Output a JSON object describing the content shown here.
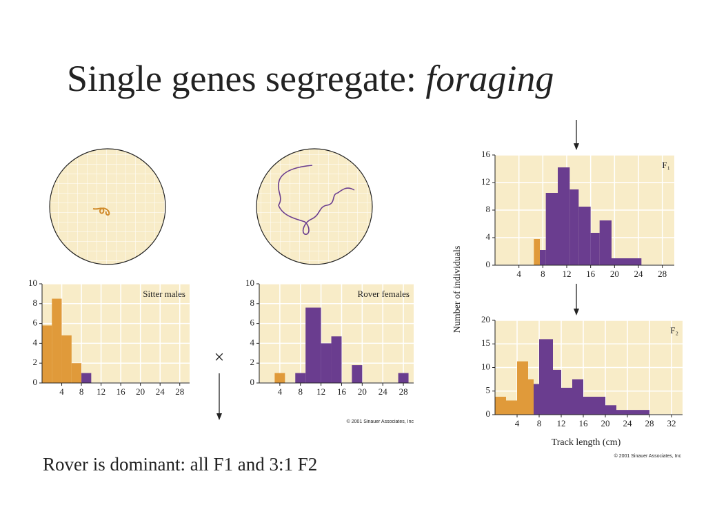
{
  "title": "Single genes segregate: ",
  "title_italic": "foraging",
  "caption": "Rover is dominant: all F1 and 3:1 F2",
  "cross_symbol": "×",
  "copyright": [
    "© 2001 Sinauer Associates, Inc",
    "© 2001 Sinauer Associates, Inc"
  ],
  "chart_data": [
    {
      "type": "histogram",
      "label": "Sitter males",
      "bins": [
        0,
        2,
        4,
        6,
        8,
        10
      ],
      "values": [
        5.8,
        8.5,
        4.8,
        2,
        1
      ],
      "bar_colors": [
        "#e09a3a",
        "#e09a3a",
        "#e09a3a",
        "#e09a3a",
        "#6a3d8f"
      ],
      "xlim": [
        0,
        30
      ],
      "ylim": [
        0,
        10
      ],
      "xticks": [
        4,
        8,
        12,
        16,
        20,
        24,
        28
      ],
      "yticks": [
        0,
        2,
        4,
        6,
        8,
        10
      ],
      "grid": true
    },
    {
      "type": "histogram",
      "label": "Rover females",
      "bins": [
        3,
        5,
        7,
        9,
        12,
        14,
        16,
        18,
        20,
        27,
        29
      ],
      "values": [
        1,
        0,
        1,
        7.6,
        4,
        4.7,
        0,
        1.8,
        0,
        1
      ],
      "bar_colors": [
        "#e09a3a",
        "#6a3d8f",
        "#6a3d8f",
        "#6a3d8f",
        "#6a3d8f",
        "#6a3d8f",
        "#6a3d8f",
        "#6a3d8f",
        "#6a3d8f",
        "#6a3d8f"
      ],
      "xlim": [
        0,
        30
      ],
      "ylim": [
        0,
        10
      ],
      "xticks": [
        4,
        8,
        12,
        16,
        20,
        24,
        28
      ],
      "yticks": [
        0,
        2,
        4,
        6,
        8,
        10
      ],
      "grid": true
    },
    {
      "type": "histogram",
      "label": "F₁",
      "ylabel": "Number of individuals",
      "bins": [
        6.5,
        7.5,
        8.5,
        10.5,
        12.5,
        14,
        16,
        17.5,
        19.5,
        24.5
      ],
      "values": [
        3.8,
        2.2,
        10.5,
        14.2,
        11,
        8.5,
        4.7,
        6.5,
        1
      ],
      "bar_colors": [
        "#e09a3a",
        "#6a3d8f",
        "#6a3d8f",
        "#6a3d8f",
        "#6a3d8f",
        "#6a3d8f",
        "#6a3d8f",
        "#6a3d8f",
        "#6a3d8f"
      ],
      "xlim": [
        0,
        30
      ],
      "ylim": [
        0,
        16
      ],
      "xticks": [
        4,
        8,
        12,
        16,
        20,
        24,
        28
      ],
      "yticks": [
        0,
        4,
        8,
        12,
        16
      ],
      "grid": true
    },
    {
      "type": "histogram",
      "label": "F₂",
      "xlabel": "Track length (cm)",
      "bins": [
        0,
        2,
        4,
        6,
        7,
        8,
        10.5,
        12,
        14,
        16,
        20,
        22,
        28
      ],
      "values": [
        3.8,
        3,
        11.3,
        7.5,
        6.5,
        16,
        9.5,
        5.7,
        7.5,
        3.8,
        2,
        1
      ],
      "bar_colors": [
        "#e09a3a",
        "#e09a3a",
        "#e09a3a",
        "#e09a3a",
        "#6a3d8f",
        "#6a3d8f",
        "#6a3d8f",
        "#6a3d8f",
        "#6a3d8f",
        "#6a3d8f",
        "#6a3d8f",
        "#6a3d8f"
      ],
      "xlim": [
        0,
        34
      ],
      "ylim": [
        0,
        20
      ],
      "xticks": [
        4,
        8,
        12,
        16,
        20,
        24,
        28,
        32
      ],
      "yticks": [
        0,
        5,
        10,
        15,
        20
      ],
      "grid": true
    }
  ]
}
